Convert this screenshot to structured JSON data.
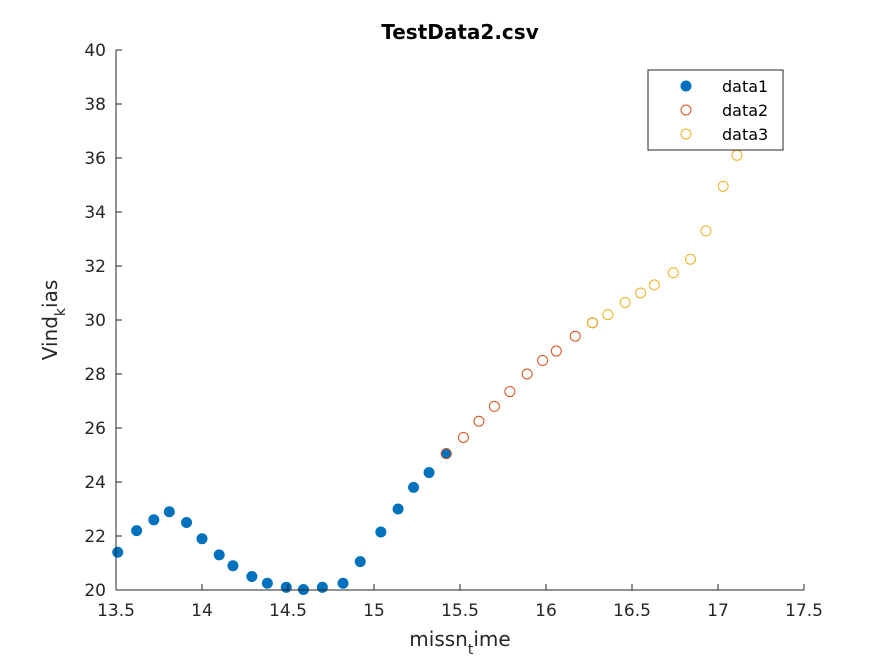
{
  "chart_data": {
    "type": "scatter",
    "title": "TestData2.csv",
    "xlabel": {
      "main": "missn",
      "sub": "t",
      "rest": "ime"
    },
    "ylabel": {
      "main": "Vind",
      "sub": "k",
      "rest": "ias"
    },
    "xlim": [
      13.5,
      17.5
    ],
    "ylim": [
      20,
      40
    ],
    "xticks": [
      "13.5",
      "14",
      "14.5",
      "15",
      "15.5",
      "16",
      "16.5",
      "17",
      "17.5"
    ],
    "yticks": [
      "20",
      "22",
      "24",
      "26",
      "28",
      "30",
      "32",
      "34",
      "36",
      "38",
      "40"
    ],
    "legend_position": "top-right",
    "series": [
      {
        "name": "data1",
        "marker": "filled-circle",
        "color": "#0072BD",
        "points": [
          [
            13.51,
            21.4
          ],
          [
            13.62,
            22.2
          ],
          [
            13.72,
            22.6
          ],
          [
            13.81,
            22.9
          ],
          [
            13.91,
            22.5
          ],
          [
            14.0,
            21.9
          ],
          [
            14.1,
            21.3
          ],
          [
            14.18,
            20.9
          ],
          [
            14.29,
            20.5
          ],
          [
            14.38,
            20.25
          ],
          [
            14.49,
            20.1
          ],
          [
            14.59,
            20.02
          ],
          [
            14.7,
            20.1
          ],
          [
            14.82,
            20.25
          ],
          [
            14.92,
            21.05
          ],
          [
            15.04,
            22.15
          ],
          [
            15.14,
            23.0
          ],
          [
            15.23,
            23.8
          ],
          [
            15.32,
            24.35
          ],
          [
            15.42,
            25.05
          ]
        ]
      },
      {
        "name": "data2",
        "marker": "open-circle",
        "color": "#D95319",
        "points": [
          [
            15.42,
            25.05
          ],
          [
            15.52,
            25.65
          ],
          [
            15.61,
            26.25
          ],
          [
            15.7,
            26.8
          ],
          [
            15.79,
            27.35
          ],
          [
            15.89,
            28.0
          ],
          [
            15.98,
            28.5
          ],
          [
            16.06,
            28.85
          ],
          [
            16.17,
            29.4
          ],
          [
            16.27,
            29.9
          ]
        ]
      },
      {
        "name": "data3",
        "marker": "open-circle",
        "color": "#EDB120",
        "points": [
          [
            16.27,
            29.9
          ],
          [
            16.36,
            30.2
          ],
          [
            16.46,
            30.65
          ],
          [
            16.55,
            31.0
          ],
          [
            16.63,
            31.3
          ],
          [
            16.74,
            31.75
          ],
          [
            16.84,
            32.25
          ],
          [
            16.93,
            33.3
          ],
          [
            17.03,
            34.95
          ],
          [
            17.11,
            36.1
          ]
        ]
      }
    ]
  }
}
